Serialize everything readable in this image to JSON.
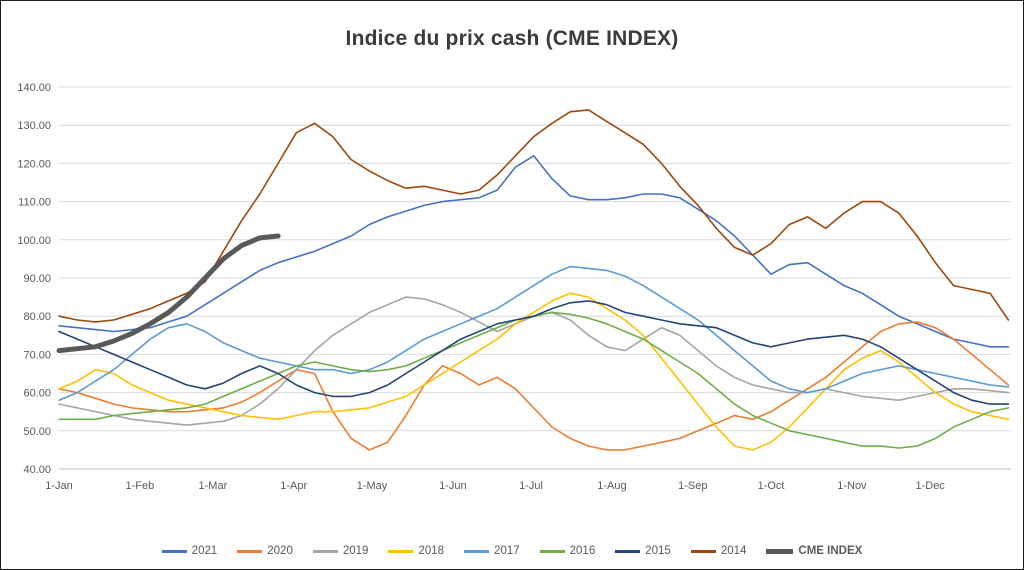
{
  "chart_data": {
    "type": "line",
    "title": "Indice du prix cash (CME INDEX)",
    "xlabel": "",
    "ylabel": "",
    "ylim": [
      40,
      140
    ],
    "y_tick_step": 10,
    "y_tick_labels": [
      "40.00",
      "50.00",
      "60.00",
      "70.00",
      "80.00",
      "90.00",
      "100.00",
      "110.00",
      "120.00",
      "130.00",
      "140.00"
    ],
    "x_tick_labels": [
      "1-Jan",
      "1-Feb",
      "1-Mar",
      "1-Apr",
      "1-May",
      "1-Jun",
      "1-Jul",
      "1-Aug",
      "1-Sep",
      "1-Oct",
      "1-Nov",
      "1-Dec"
    ],
    "x_tick_days": [
      0,
      31,
      59,
      90,
      120,
      151,
      181,
      212,
      243,
      273,
      304,
      334
    ],
    "x_total_days": 365,
    "sample_interval_days": 7,
    "grid": true,
    "legend_position": "bottom",
    "series": [
      {
        "name": "2021",
        "color": "#4472C4",
        "width": 1.6,
        "values": [
          77.5,
          77,
          76.5,
          76,
          76.5,
          77,
          78.5,
          80,
          83,
          86,
          89,
          92,
          94,
          95.5,
          97,
          99,
          101,
          104,
          106,
          107.5,
          109,
          110,
          110.5,
          111,
          113,
          119,
          122,
          116,
          111.5,
          110.5,
          110.5,
          111,
          112,
          112,
          111,
          108,
          105,
          101,
          96,
          91,
          93.5,
          94,
          91,
          88,
          86,
          83,
          80,
          78,
          76,
          74,
          73,
          72,
          72
        ]
      },
      {
        "name": "2020",
        "color": "#ED7D31",
        "width": 1.6,
        "values": [
          61,
          60,
          58.5,
          57,
          56,
          55.5,
          55,
          55,
          55.5,
          56,
          57.5,
          60,
          63,
          66,
          65,
          55,
          48,
          45,
          47,
          54,
          62,
          67,
          65,
          62,
          64,
          61,
          56,
          51,
          48,
          46,
          45,
          45,
          46,
          47,
          48,
          50,
          52,
          54,
          53,
          55,
          58,
          61,
          64,
          68,
          72,
          76,
          78,
          78.5,
          77,
          74,
          70,
          66,
          62
        ]
      },
      {
        "name": "2019",
        "color": "#A5A5A5",
        "width": 1.6,
        "values": [
          57,
          56,
          55,
          54,
          53,
          52.5,
          52,
          51.5,
          52,
          52.5,
          54,
          57,
          61,
          66,
          71,
          75,
          78,
          81,
          83,
          85,
          84.5,
          83,
          81,
          78.5,
          76,
          78,
          80,
          81,
          79,
          75,
          72,
          71,
          74,
          77,
          75,
          71,
          67,
          64,
          62,
          61,
          60,
          60,
          61,
          60,
          59,
          58.5,
          58,
          59,
          60,
          61,
          61,
          60.5,
          60
        ]
      },
      {
        "name": "2018",
        "color": "#FFC000",
        "width": 1.6,
        "values": [
          61,
          63,
          66,
          65,
          62,
          60,
          58,
          57,
          56,
          55,
          54,
          53.5,
          53,
          54,
          55,
          55,
          55.5,
          56,
          57.5,
          59,
          62,
          65,
          68,
          71,
          74,
          78,
          81,
          84,
          86,
          85,
          82,
          79,
          75,
          69,
          63,
          57,
          51,
          46,
          45,
          47,
          51,
          56,
          61,
          66,
          69,
          71,
          68,
          64,
          60,
          57,
          55,
          54,
          53
        ]
      },
      {
        "name": "2017",
        "color": "#5B9BD5",
        "width": 1.6,
        "values": [
          58,
          60,
          63,
          66,
          70,
          74,
          77,
          78,
          76,
          73,
          71,
          69,
          68,
          67,
          66,
          66,
          65,
          66,
          68,
          71,
          74,
          76,
          78,
          80,
          82,
          85,
          88,
          91,
          93,
          92.5,
          92,
          90.5,
          88,
          85,
          82,
          79,
          75,
          71,
          67,
          63,
          61,
          60,
          61,
          63,
          65,
          66,
          67,
          66,
          65,
          64,
          63,
          62,
          61.5
        ]
      },
      {
        "name": "2016",
        "color": "#70AD47",
        "width": 1.6,
        "values": [
          53,
          53,
          53,
          54,
          54.5,
          55,
          55.5,
          56,
          57,
          59,
          61,
          63,
          65,
          67,
          68,
          67,
          66,
          65.5,
          66,
          67,
          69,
          71,
          73,
          75,
          77,
          79,
          80,
          81,
          80.5,
          79.5,
          78,
          76,
          74,
          71,
          68,
          65,
          61,
          57,
          54,
          52,
          50,
          49,
          48,
          47,
          46,
          46,
          45.5,
          46,
          48,
          51,
          53,
          55,
          56
        ]
      },
      {
        "name": "2015",
        "color": "#264478",
        "width": 1.6,
        "values": [
          76,
          74,
          72,
          70,
          68,
          66,
          64,
          62,
          61,
          62.5,
          65,
          67,
          65,
          62,
          60,
          59,
          59,
          60,
          62,
          65,
          68,
          71,
          74,
          76,
          78,
          79,
          80,
          82,
          83.5,
          84,
          83,
          81,
          80,
          79,
          78,
          77.5,
          77,
          75,
          73,
          72,
          73,
          74,
          74.5,
          75,
          74,
          72,
          69,
          66,
          63,
          60,
          58,
          57,
          57
        ]
      },
      {
        "name": "2014",
        "color": "#9E480E",
        "width": 1.6,
        "values": [
          80,
          79,
          78.5,
          79,
          80.5,
          82,
          84,
          86,
          89,
          97,
          105,
          112,
          120,
          128,
          130.5,
          127,
          121,
          118,
          115.5,
          113.5,
          114,
          113,
          112,
          113,
          117,
          122,
          127,
          130.5,
          133.5,
          134,
          131,
          128,
          125,
          120,
          114,
          109,
          103,
          98,
          96,
          99,
          104,
          106,
          103,
          107,
          110,
          110,
          107,
          101,
          94,
          88,
          87,
          86,
          79
        ]
      },
      {
        "name": "CME INDEX",
        "color": "#595959",
        "width": 5,
        "legend_bold": true,
        "values": [
          71,
          71.5,
          72,
          73.5,
          75.5,
          78,
          81,
          85,
          90,
          95,
          98.5,
          100.5,
          101
        ]
      }
    ]
  },
  "colors": {
    "background": "#FFFFFF",
    "frame": "#1C1C1C",
    "gridline": "#D9D9D9",
    "axis_line": "#BFBFBF",
    "tick_text": "#595959",
    "title_text": "#3B3B3B"
  }
}
